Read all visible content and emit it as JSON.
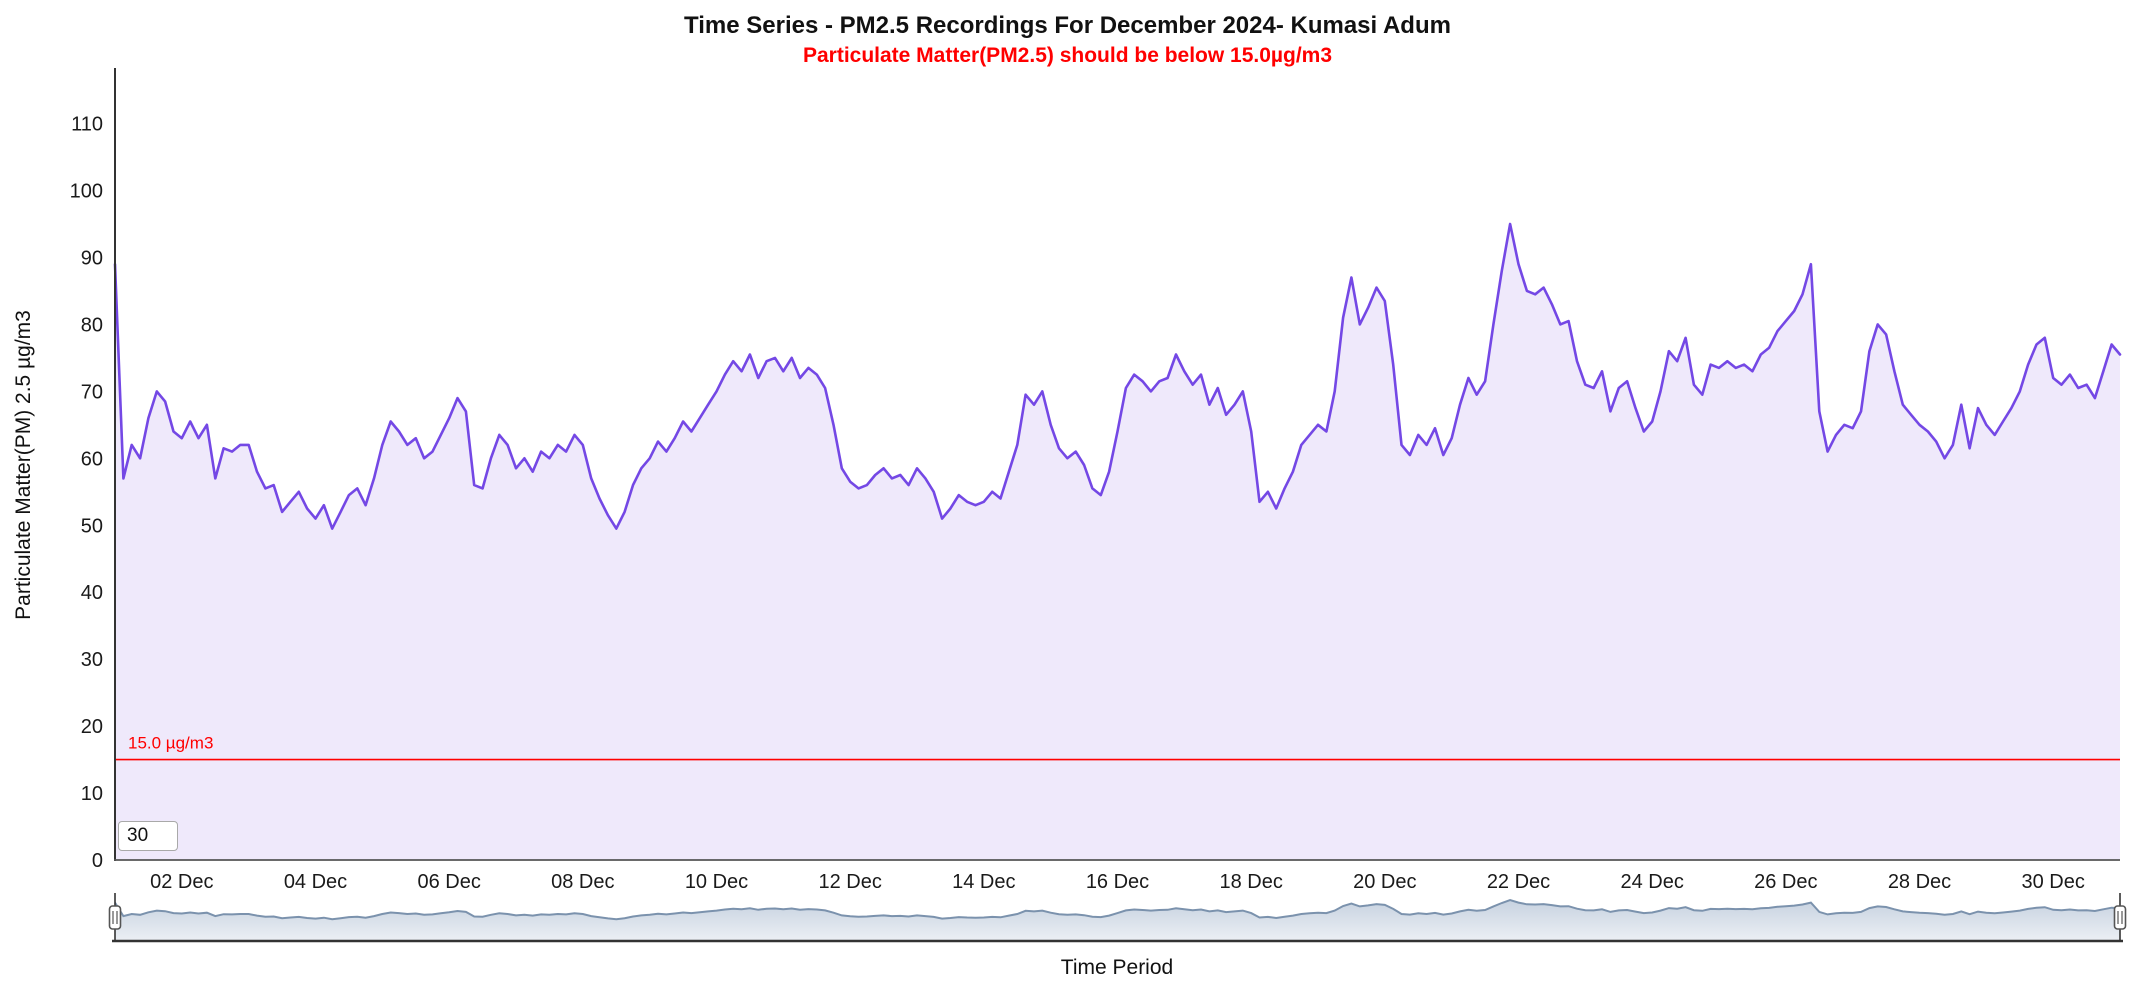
{
  "header": {
    "title": "Time Series - PM2.5 Recordings For December 2024- Kumasi Adum",
    "subtitle": "Particulate Matter(PM2.5) should be below 15.0µg/m3"
  },
  "range_selector": {
    "input_value": "30"
  },
  "navigator": {
    "shows": "full-series-overview",
    "handles": [
      "left",
      "right"
    ]
  },
  "colors": {
    "series_line": "#7448e5",
    "series_fill": "#efe9fb",
    "threshold_red": "#ff0000",
    "subtitle_red": "#ff0000",
    "navigator_line": "#7b92ad",
    "navigator_fill_top": "#c7d2e0",
    "navigator_fill_bottom": "#ebeff4",
    "axis_line": "#333333"
  },
  "chart_data": {
    "type": "area",
    "title": "Time Series - PM2.5 Recordings For December 2024- Kumasi Adum",
    "subtitle": "Particulate Matter(PM2.5) should be below 15.0µg/m3",
    "xlabel": "Time Period",
    "ylabel": "Particulate Matter(PM) 2.5 µg/m3",
    "x_range": [
      "01 Dec 2024",
      "31 Dec 2024"
    ],
    "points_per_day": 8,
    "ylim": [
      0,
      118
    ],
    "grid": "off",
    "legend": "off",
    "y_ticks": [
      0,
      10,
      20,
      30,
      40,
      50,
      60,
      70,
      80,
      90,
      100,
      110
    ],
    "x_tick_labels": [
      "02 Dec",
      "04 Dec",
      "06 Dec",
      "08 Dec",
      "10 Dec",
      "12 Dec",
      "14 Dec",
      "16 Dec",
      "18 Dec",
      "20 Dec",
      "22 Dec",
      "24 Dec",
      "26 Dec",
      "28 Dec",
      "30 Dec"
    ],
    "threshold_line": {
      "value": 15.0,
      "label": "15.0 µg/m3"
    },
    "series": [
      {
        "name": "PM2.5",
        "values": [
          89,
          57,
          62,
          60,
          66,
          70,
          68.5,
          64,
          63,
          65.5,
          63,
          65,
          57,
          61.5,
          61,
          62,
          62,
          58,
          55.5,
          56,
          52,
          53.5,
          55,
          52.5,
          51,
          53,
          49.5,
          52,
          54.5,
          55.5,
          53,
          57,
          62,
          65.5,
          64,
          62,
          63,
          60,
          61,
          63.5,
          66,
          69,
          67,
          56,
          55.5,
          60,
          63.5,
          62,
          58.5,
          60,
          58,
          61,
          60,
          62,
          61,
          63.5,
          62,
          57,
          54,
          51.5,
          49.5,
          52,
          56,
          58.5,
          60,
          62.5,
          61,
          63,
          65.5,
          64,
          66,
          68,
          70,
          72.5,
          74.5,
          73,
          75.5,
          72,
          74.5,
          75,
          73,
          75,
          72,
          73.5,
          72.5,
          70.5,
          65,
          58.5,
          56.5,
          55.5,
          56,
          57.5,
          58.5,
          57,
          57.5,
          56,
          58.5,
          57,
          55,
          51,
          52.5,
          54.5,
          53.5,
          53,
          53.5,
          55,
          54,
          58,
          62,
          69.5,
          68,
          70,
          65,
          61.5,
          60,
          61,
          59,
          55.5,
          54.5,
          58,
          64,
          70.5,
          72.5,
          71.5,
          70,
          71.5,
          72,
          75.5,
          73,
          71,
          72.5,
          68,
          70.5,
          66.5,
          68,
          70,
          64,
          53.5,
          55,
          52.5,
          55.5,
          58,
          62,
          63.5,
          65,
          64,
          70,
          81,
          87,
          80,
          82.5,
          85.5,
          83.5,
          74,
          62,
          60.5,
          63.5,
          62,
          64.5,
          60.5,
          63,
          68,
          72,
          69.5,
          71.5,
          80,
          88,
          95,
          89,
          85,
          84.5,
          85.5,
          83,
          80,
          80.5,
          74.5,
          71,
          70.5,
          73,
          67,
          70.5,
          71.5,
          67.5,
          64,
          65.5,
          70,
          76,
          74.5,
          78,
          71,
          69.5,
          74,
          73.5,
          74.5,
          73.5,
          74,
          73,
          75.5,
          76.5,
          79,
          80.5,
          82,
          84.5,
          89,
          67,
          61,
          63.5,
          65,
          64.5,
          67,
          76,
          80,
          78.5,
          73,
          68,
          66.5,
          65,
          64,
          62.5,
          60,
          62,
          68,
          61.5,
          67.5,
          65,
          63.5,
          65.5,
          67.5,
          70,
          74,
          77,
          78,
          72,
          71,
          72.5,
          70.5,
          71,
          69,
          73,
          77,
          75.5
        ]
      }
    ]
  }
}
